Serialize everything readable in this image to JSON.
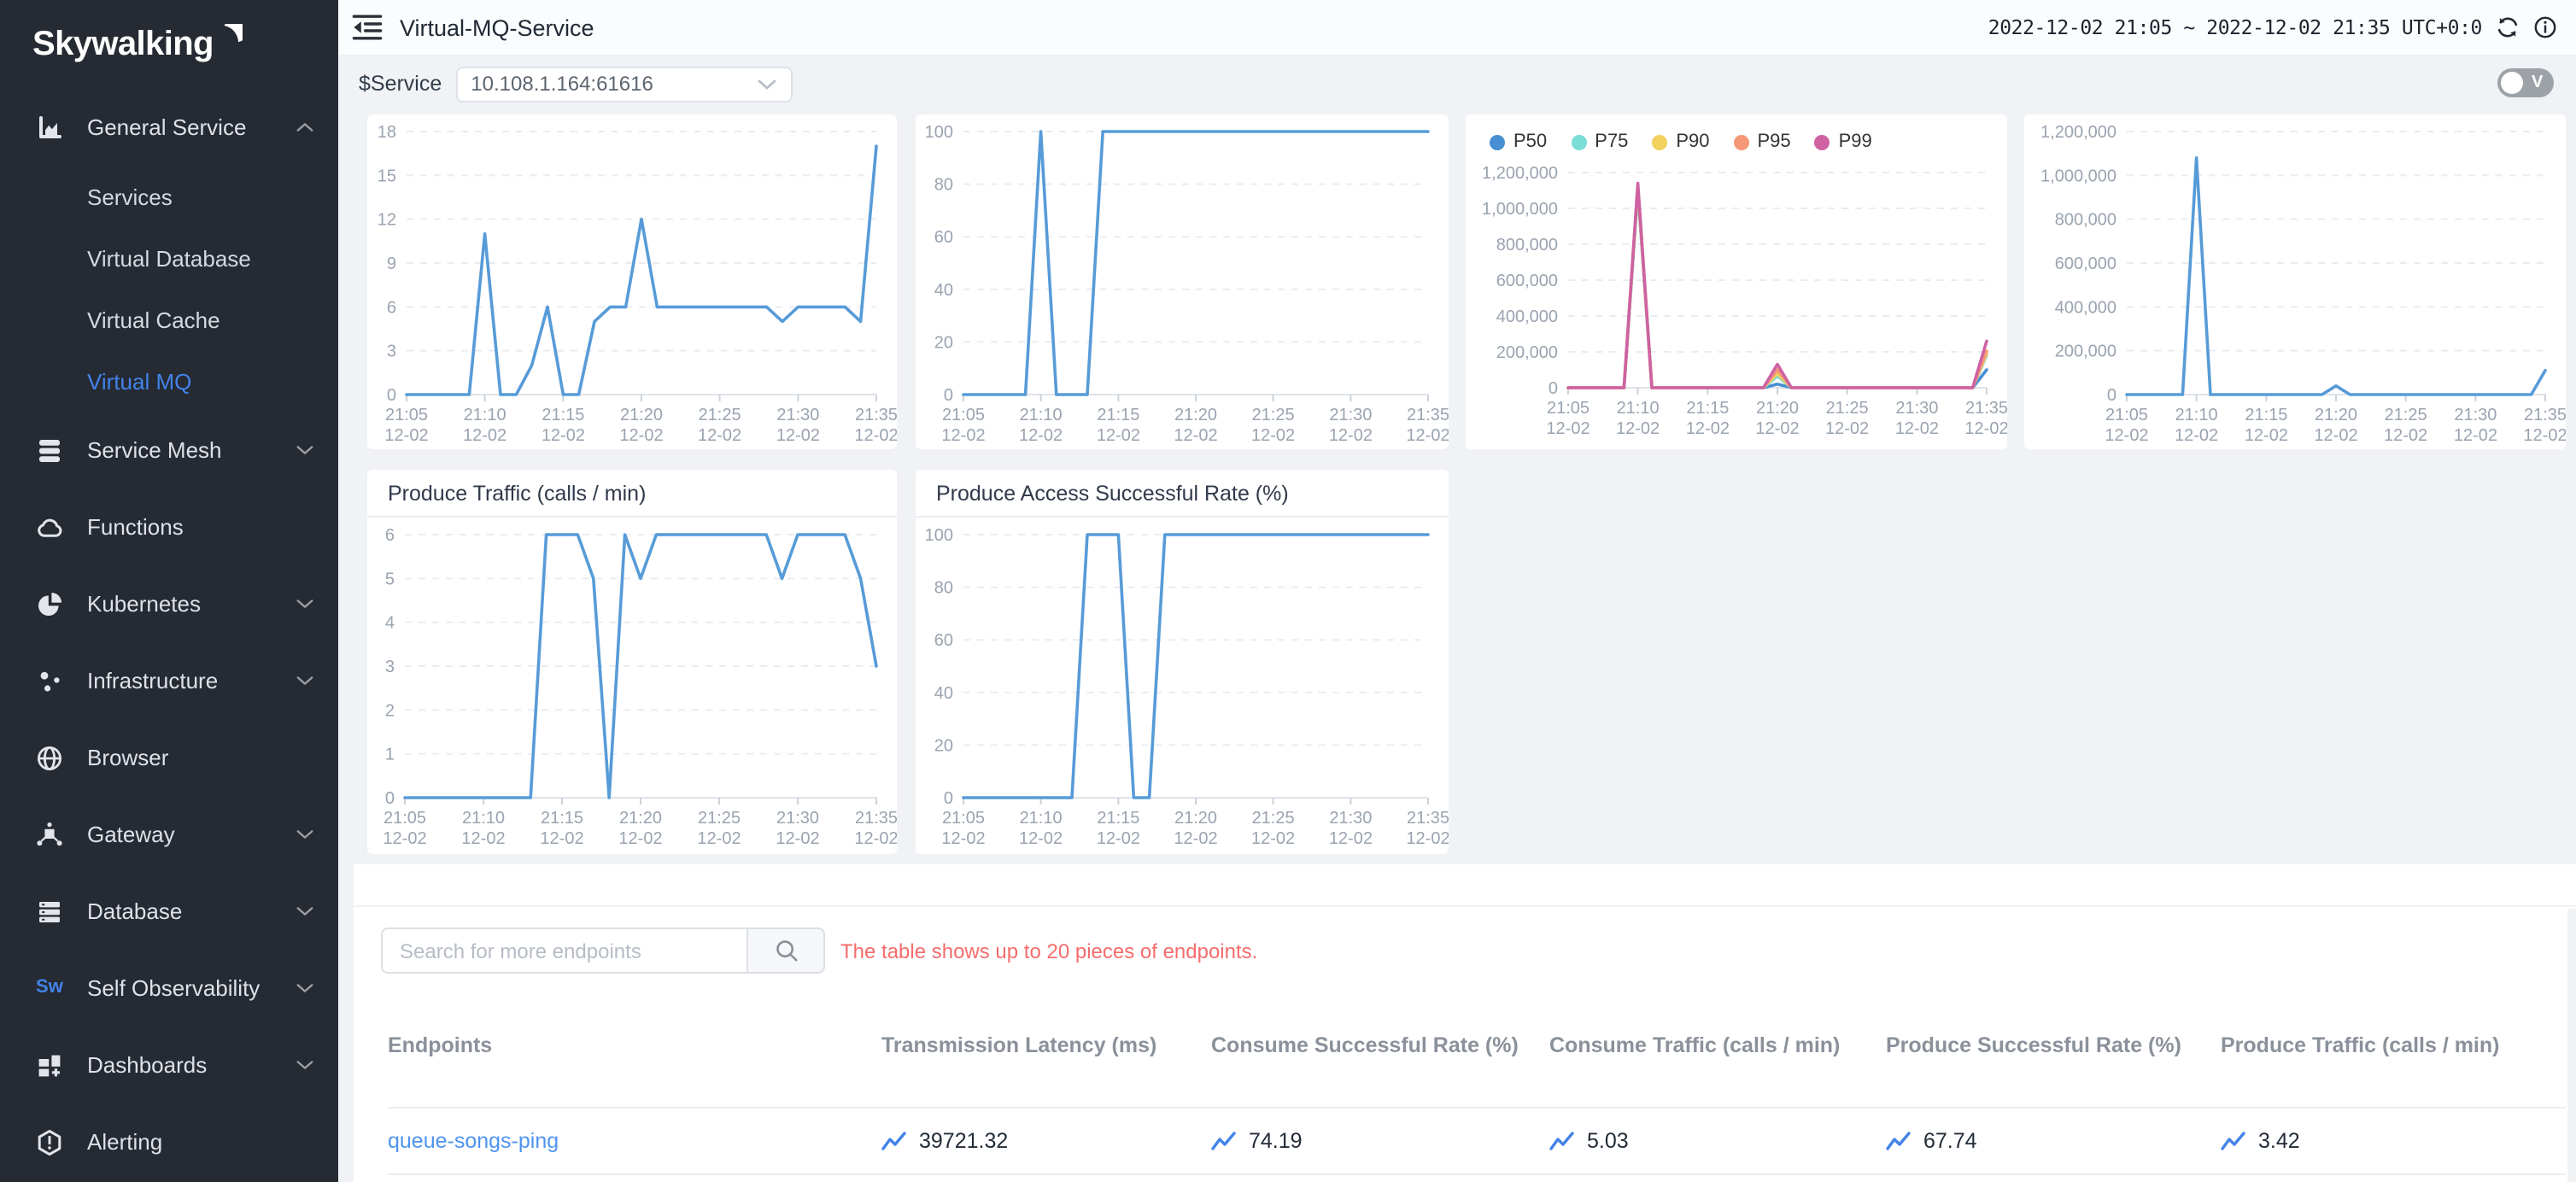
{
  "sidebar": {
    "logo_text": "Skywalking",
    "items": [
      {
        "label": "General Service",
        "icon": "chart-icon",
        "chevron": "up",
        "level": 0
      },
      {
        "label": "Services",
        "level": 1
      },
      {
        "label": "Virtual Database",
        "level": 1
      },
      {
        "label": "Virtual Cache",
        "level": 1
      },
      {
        "label": "Virtual MQ",
        "level": 1,
        "active": true
      },
      {
        "label": "Service Mesh",
        "icon": "layers-icon",
        "chevron": "down",
        "level": 0
      },
      {
        "label": "Functions",
        "icon": "cloud-icon",
        "level": 0
      },
      {
        "label": "Kubernetes",
        "icon": "kubernetes-icon",
        "chevron": "down",
        "level": 0
      },
      {
        "label": "Infrastructure",
        "icon": "dots-icon",
        "chevron": "down",
        "level": 0
      },
      {
        "label": "Browser",
        "icon": "globe-icon",
        "level": 0
      },
      {
        "label": "Gateway",
        "icon": "gateway-icon",
        "chevron": "down",
        "level": 0
      },
      {
        "label": "Database",
        "icon": "database-icon",
        "chevron": "down",
        "level": 0
      },
      {
        "label": "Self Observability",
        "icon": "sw-icon",
        "chevron": "down",
        "level": 0
      },
      {
        "label": "Dashboards",
        "icon": "dashboards-icon",
        "chevron": "down",
        "level": 0
      },
      {
        "label": "Alerting",
        "icon": "alert-icon",
        "level": 0
      }
    ]
  },
  "header": {
    "title": "Virtual-MQ-Service",
    "time_range": "2022-12-02 21:05 ~ 2022-12-02 21:35 UTC+0:0"
  },
  "service_bar": {
    "label": "$Service",
    "value": "10.108.1.164:61616",
    "toggle_label": "V"
  },
  "endpoints": {
    "search_placeholder": "Search for more endpoints",
    "notice": "The table shows up to 20 pieces of endpoints.",
    "columns": [
      "Endpoints",
      "Transmission Latency (ms)",
      "Consume Successful Rate (%)",
      "Consume Traffic (calls / min)",
      "Produce Successful Rate (%)",
      "Produce Traffic (calls / min)"
    ],
    "rows": [
      {
        "endpoint": "queue-songs-ping",
        "values": [
          "39721.32",
          "74.19",
          "5.03",
          "67.74",
          "3.42"
        ]
      }
    ]
  },
  "colors": {
    "accent": "#4383e9",
    "line": "#579bd8",
    "link": "#4f94ef",
    "notice": "#f56c6c",
    "p50": "#478fd2",
    "p75": "#7cdcd7",
    "p90": "#f2d15f",
    "p95": "#f59877",
    "p99": "#ce62a2"
  },
  "x_axis": {
    "tick_times": [
      "21:05",
      "21:10",
      "21:15",
      "21:20",
      "21:25",
      "21:30",
      "21:35"
    ],
    "tick_date": "12-02",
    "points": 31
  },
  "chart_data": [
    {
      "type": "line",
      "title": null,
      "ylim": [
        0,
        18
      ],
      "yticks": [
        0,
        3,
        6,
        9,
        12,
        15,
        18
      ],
      "grid": true,
      "legend_position": null,
      "series": [
        {
          "name": "value",
          "values": [
            0,
            0,
            0,
            0,
            0,
            11,
            0,
            0,
            2,
            6,
            0,
            0,
            5,
            6,
            6,
            12,
            6,
            6,
            6,
            6,
            6,
            6,
            6,
            6,
            5,
            6,
            6,
            6,
            6,
            5,
            17
          ]
        }
      ]
    },
    {
      "type": "line",
      "title": null,
      "ylim": [
        0,
        100
      ],
      "yticks": [
        0,
        20,
        40,
        60,
        80,
        100
      ],
      "grid": true,
      "legend_position": null,
      "series": [
        {
          "name": "value",
          "values": [
            0,
            0,
            0,
            0,
            0,
            100,
            0,
            0,
            0,
            100,
            100,
            100,
            100,
            100,
            100,
            100,
            100,
            100,
            100,
            100,
            100,
            100,
            100,
            100,
            100,
            100,
            100,
            100,
            100,
            100,
            100
          ]
        }
      ]
    },
    {
      "type": "line",
      "title": null,
      "ylim": [
        0,
        1200000
      ],
      "yticks": [
        0,
        200000,
        400000,
        600000,
        800000,
        1000000,
        1200000
      ],
      "grid": true,
      "legend_position": "top",
      "series": [
        {
          "name": "P50",
          "color": "#478fd2",
          "values": [
            0,
            0,
            0,
            0,
            0,
            1100000,
            0,
            0,
            0,
            0,
            0,
            0,
            0,
            0,
            0,
            20000,
            0,
            0,
            0,
            0,
            0,
            0,
            0,
            0,
            0,
            0,
            0,
            0,
            0,
            0,
            100000
          ]
        },
        {
          "name": "P75",
          "color": "#7cdcd7",
          "values": [
            0,
            0,
            0,
            0,
            0,
            1110000,
            0,
            0,
            0,
            0,
            0,
            0,
            0,
            0,
            0,
            65000,
            0,
            0,
            0,
            0,
            0,
            0,
            0,
            0,
            0,
            0,
            0,
            0,
            0,
            0,
            180000
          ]
        },
        {
          "name": "P90",
          "color": "#f2d15f",
          "values": [
            0,
            0,
            0,
            0,
            0,
            1120000,
            0,
            0,
            0,
            0,
            0,
            0,
            0,
            0,
            0,
            80000,
            0,
            0,
            0,
            0,
            0,
            0,
            0,
            0,
            0,
            0,
            0,
            0,
            0,
            0,
            190000
          ]
        },
        {
          "name": "P95",
          "color": "#f59877",
          "values": [
            0,
            0,
            0,
            0,
            0,
            1130000,
            0,
            0,
            0,
            0,
            0,
            0,
            0,
            0,
            0,
            100000,
            0,
            0,
            0,
            0,
            0,
            0,
            0,
            0,
            0,
            0,
            0,
            0,
            0,
            0,
            205000
          ]
        },
        {
          "name": "P99",
          "color": "#ce62a2",
          "values": [
            0,
            0,
            0,
            0,
            0,
            1140000,
            0,
            0,
            0,
            0,
            0,
            0,
            0,
            0,
            0,
            130000,
            0,
            0,
            0,
            0,
            0,
            0,
            0,
            0,
            0,
            0,
            0,
            0,
            0,
            0,
            260000
          ]
        }
      ]
    },
    {
      "type": "line",
      "title": null,
      "ylim": [
        0,
        1200000
      ],
      "yticks": [
        0,
        200000,
        400000,
        600000,
        800000,
        1000000,
        1200000
      ],
      "grid": true,
      "legend_position": null,
      "series": [
        {
          "name": "value",
          "values": [
            0,
            0,
            0,
            0,
            0,
            1080000,
            0,
            0,
            0,
            0,
            0,
            0,
            0,
            0,
            0,
            40000,
            0,
            0,
            0,
            0,
            0,
            0,
            0,
            0,
            0,
            0,
            0,
            0,
            0,
            0,
            110000
          ]
        }
      ]
    },
    {
      "type": "line",
      "title": "Produce Traffic (calls / min)",
      "ylim": [
        0,
        6
      ],
      "yticks": [
        0,
        1,
        2,
        3,
        4,
        5,
        6
      ],
      "grid": true,
      "legend_position": null,
      "series": [
        {
          "name": "value",
          "values": [
            0,
            0,
            0,
            0,
            0,
            0,
            0,
            0,
            0,
            6,
            6,
            6,
            5,
            0,
            6,
            5,
            6,
            6,
            6,
            6,
            6,
            6,
            6,
            6,
            5,
            6,
            6,
            6,
            6,
            5,
            3
          ]
        }
      ]
    },
    {
      "type": "line",
      "title": "Produce Access Successful Rate (%)",
      "ylim": [
        0,
        100
      ],
      "yticks": [
        0,
        20,
        40,
        60,
        80,
        100
      ],
      "grid": true,
      "legend_position": null,
      "series": [
        {
          "name": "value",
          "values": [
            0,
            0,
            0,
            0,
            0,
            0,
            0,
            0,
            100,
            100,
            100,
            0,
            0,
            100,
            100,
            100,
            100,
            100,
            100,
            100,
            100,
            100,
            100,
            100,
            100,
            100,
            100,
            100,
            100,
            100,
            100
          ]
        }
      ]
    }
  ]
}
